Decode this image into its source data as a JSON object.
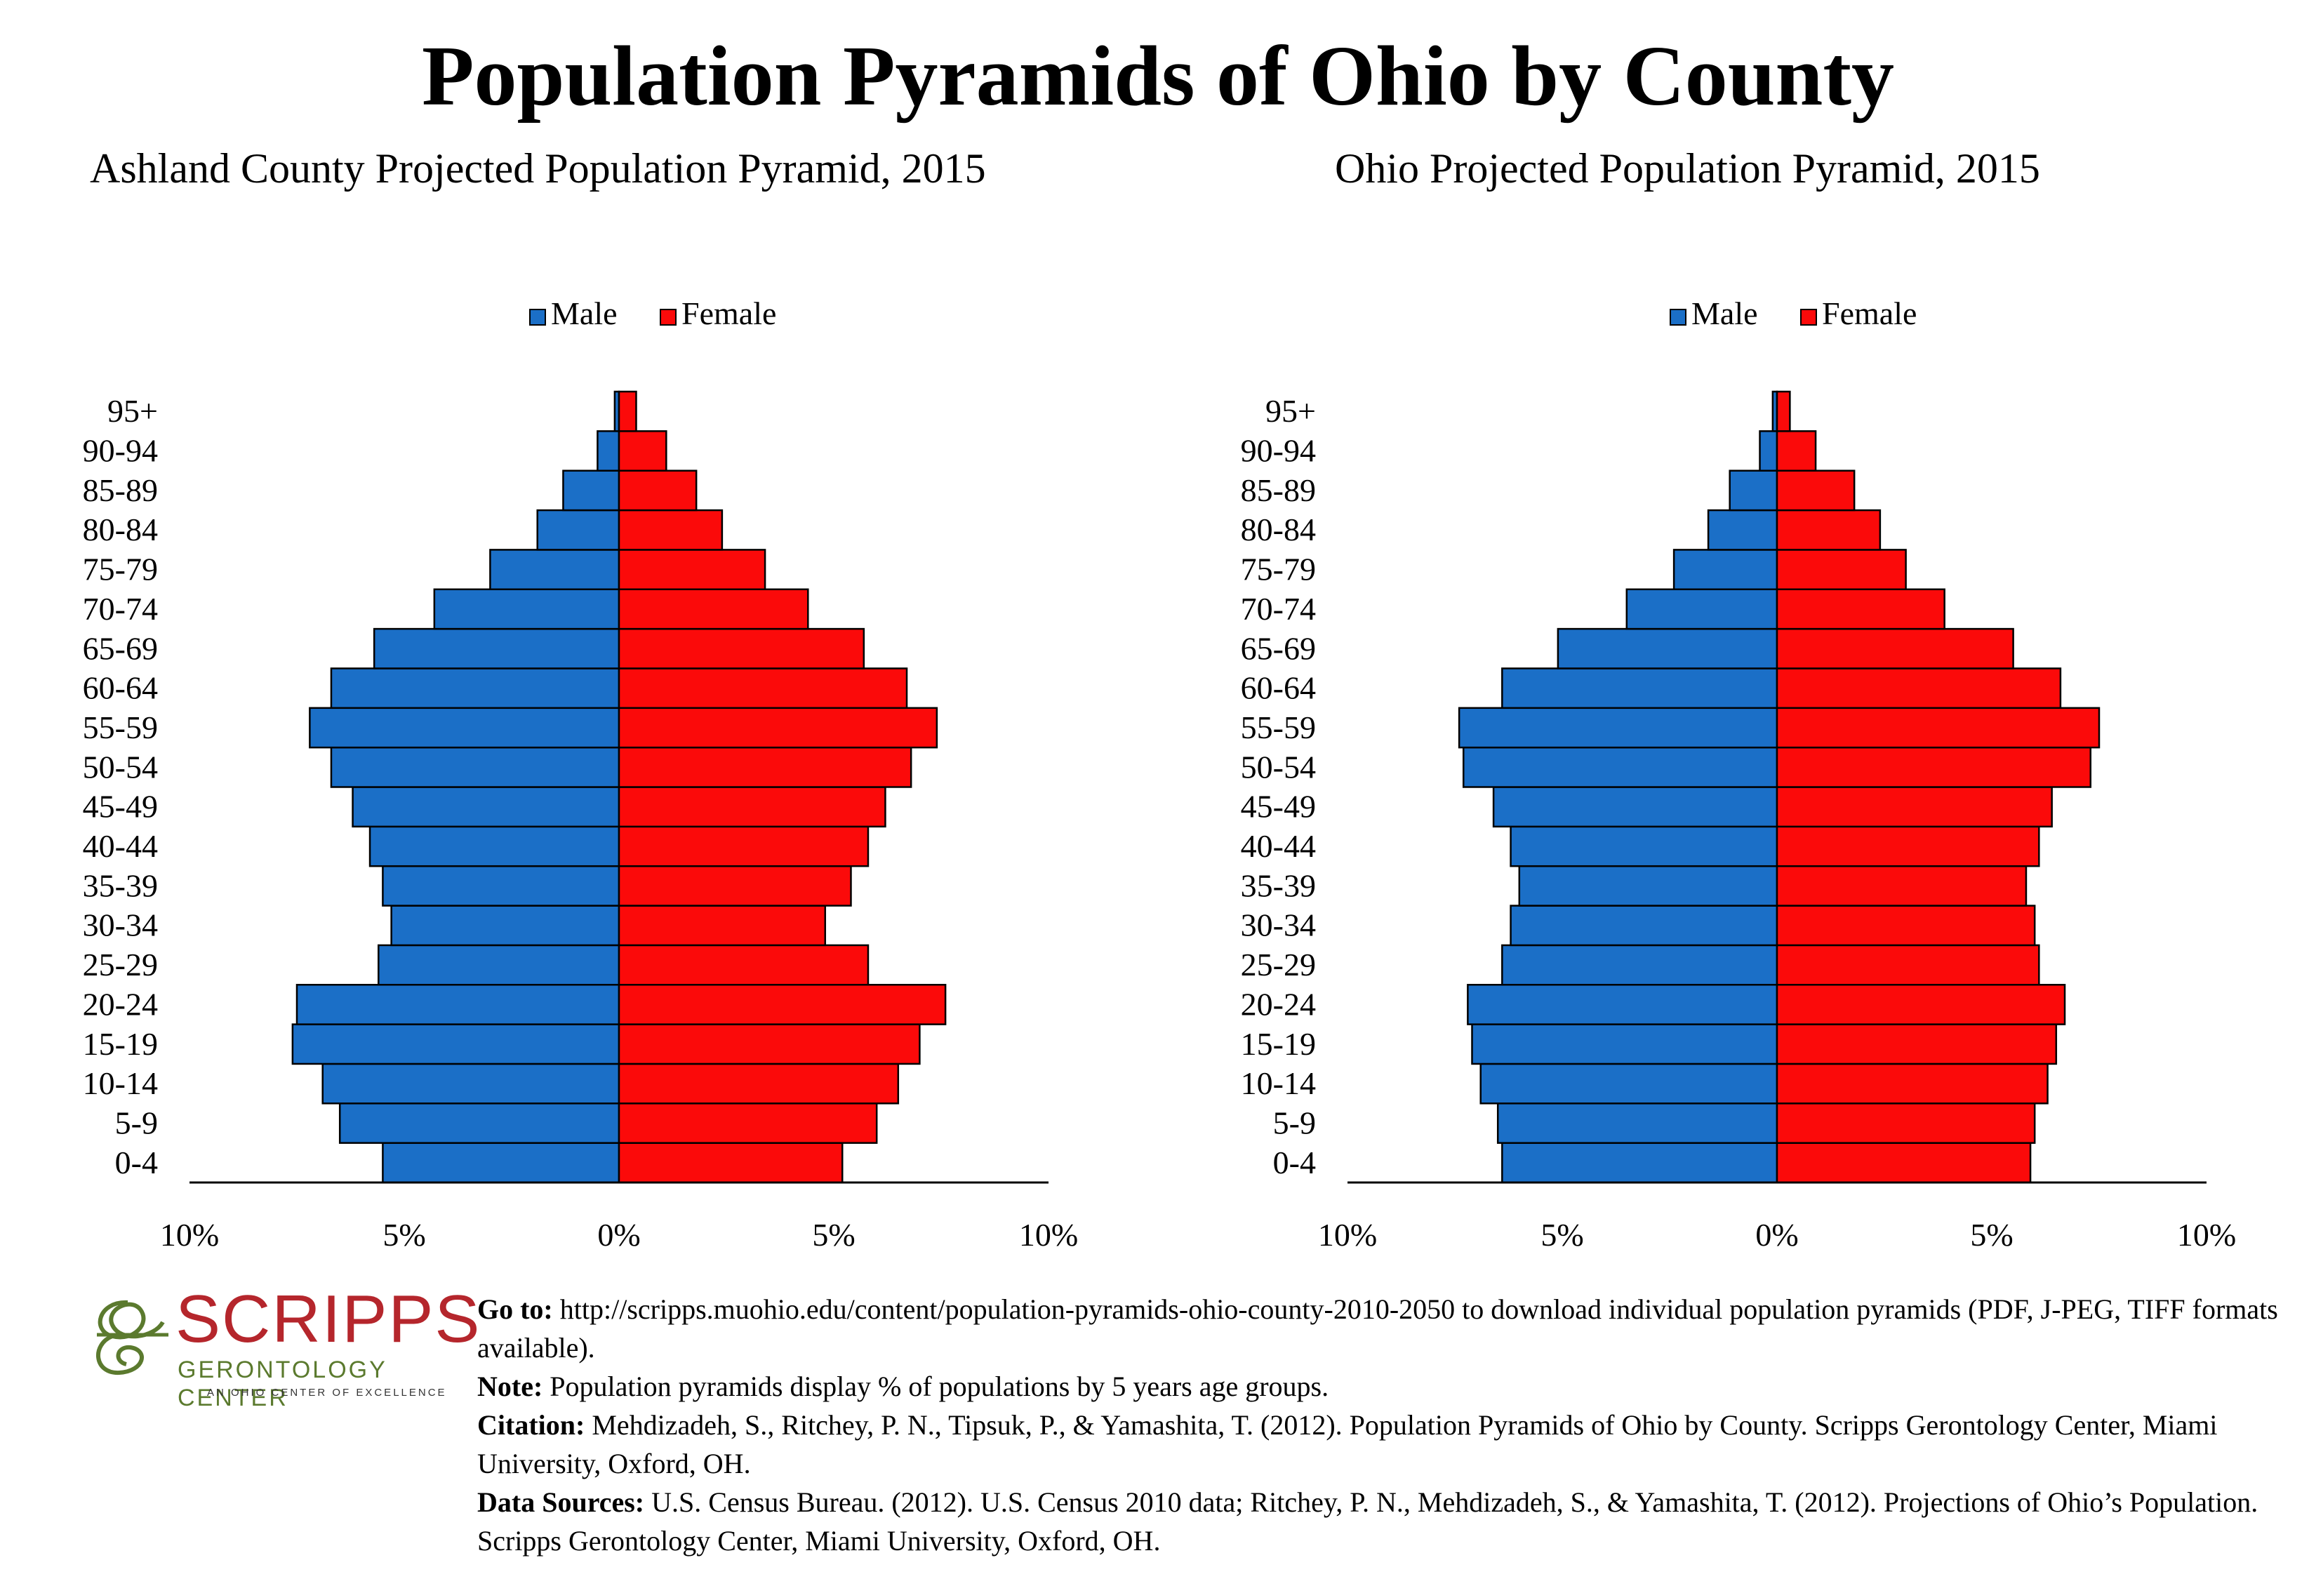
{
  "title": "Population Pyramids of Ohio by County",
  "legend": {
    "male": "Male",
    "female": "Female"
  },
  "colors": {
    "male": "#1b6fc7",
    "female": "#fb0a0a",
    "outline": "#000000"
  },
  "chart_data": [
    {
      "type": "bar",
      "title": "Ashland County Projected Population Pyramid, 2015",
      "categories": [
        "0-4",
        "5-9",
        "10-14",
        "15-19",
        "20-24",
        "25-29",
        "30-34",
        "35-39",
        "40-44",
        "45-49",
        "50-54",
        "55-59",
        "60-64",
        "65-69",
        "70-74",
        "75-79",
        "80-84",
        "85-89",
        "90-94",
        "95+"
      ],
      "series": [
        {
          "name": "Male",
          "values": [
            5.5,
            6.5,
            6.9,
            7.6,
            7.5,
            5.6,
            5.3,
            5.5,
            5.8,
            6.2,
            6.7,
            7.2,
            6.7,
            5.7,
            4.3,
            3.0,
            1.9,
            1.3,
            0.5,
            0.1
          ]
        },
        {
          "name": "Female",
          "values": [
            5.2,
            6.0,
            6.5,
            7.0,
            7.6,
            5.8,
            4.8,
            5.4,
            5.8,
            6.2,
            6.8,
            7.4,
            6.7,
            5.7,
            4.4,
            3.4,
            2.4,
            1.8,
            1.1,
            0.4
          ]
        }
      ],
      "xlim": [
        -10,
        10
      ],
      "ticks": [
        "10%",
        "5%",
        "0%",
        "5%",
        "10%"
      ],
      "legend_position": "top"
    },
    {
      "type": "bar",
      "title": "Ohio Projected Population Pyramid, 2015",
      "categories": [
        "0-4",
        "5-9",
        "10-14",
        "15-19",
        "20-24",
        "25-29",
        "30-34",
        "35-39",
        "40-44",
        "45-49",
        "50-54",
        "55-59",
        "60-64",
        "65-69",
        "70-74",
        "75-79",
        "80-84",
        "85-89",
        "90-94",
        "95+"
      ],
      "series": [
        {
          "name": "Male",
          "values": [
            6.4,
            6.5,
            6.9,
            7.1,
            7.2,
            6.4,
            6.2,
            6.0,
            6.2,
            6.6,
            7.3,
            7.4,
            6.4,
            5.1,
            3.5,
            2.4,
            1.6,
            1.1,
            0.4,
            0.1
          ]
        },
        {
          "name": "Female",
          "values": [
            5.9,
            6.0,
            6.3,
            6.5,
            6.7,
            6.1,
            6.0,
            5.8,
            6.1,
            6.4,
            7.3,
            7.5,
            6.6,
            5.5,
            3.9,
            3.0,
            2.4,
            1.8,
            0.9,
            0.3
          ]
        }
      ],
      "xlim": [
        -10,
        10
      ],
      "ticks": [
        "10%",
        "5%",
        "0%",
        "5%",
        "10%"
      ],
      "legend_position": "top"
    }
  ],
  "footer": {
    "logo": {
      "word": "SCRIPPS",
      "sub": "GERONTOLOGY CENTER",
      "tag": "AN OHIO CENTER OF EXCELLENCE"
    },
    "goto_label": "Go to:",
    "goto_text": " http://scripps.muohio.edu/content/population-pyramids-ohio-county-2010-2050 to download individual population pyramids (PDF, J-PEG, TIFF formats available).",
    "note_label": "Note:",
    "note_text": " Population pyramids display % of populations by 5 years age groups.",
    "citation_label": "Citation:",
    "citation_text": " Mehdizadeh, S., Ritchey, P. N., Tipsuk, P., & Yamashita, T. (2012). Population Pyramids of Ohio by County. Scripps Gerontology Center, Miami University, Oxford, OH.",
    "sources_label": "Data Sources:",
    "sources_text": " U.S. Census Bureau. (2012). U.S. Census 2010 data; Ritchey, P. N., Mehdizadeh, S., & Yamashita, T. (2012). Projections of Ohio’s Population. Scripps Gerontology Center, Miami University, Oxford, OH."
  }
}
